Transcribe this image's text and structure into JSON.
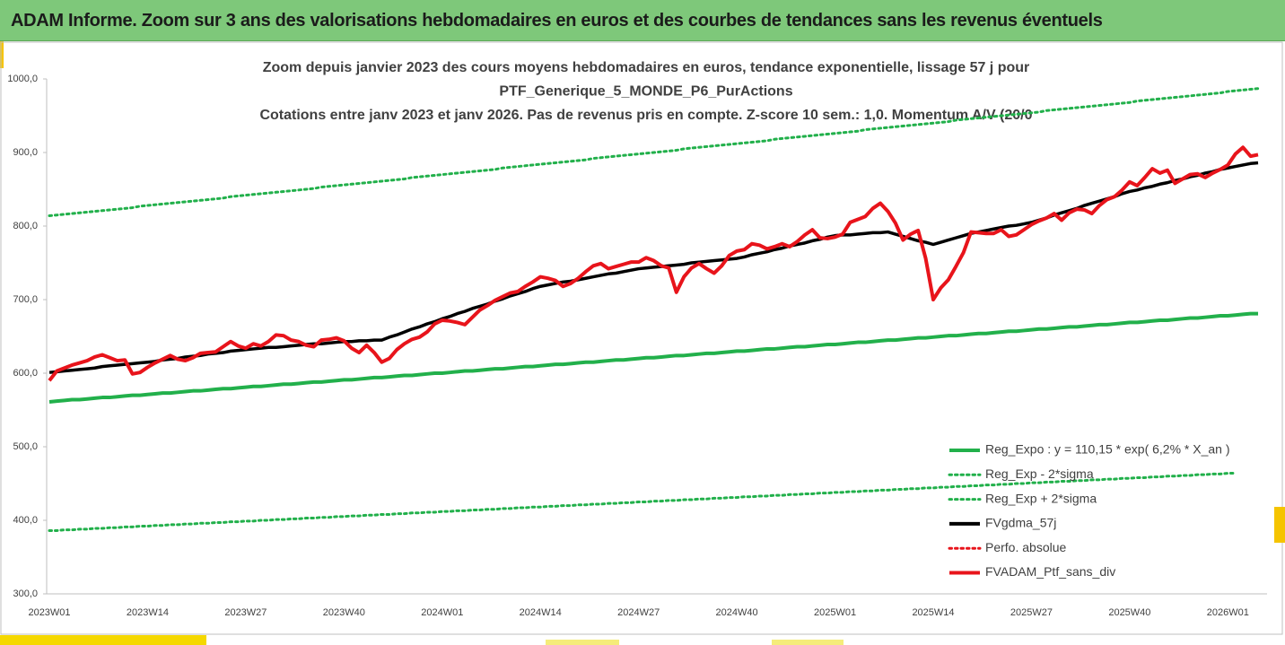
{
  "header": {
    "title": "ADAM Informe. Zoom sur 3 ans des valorisations hebdomadaires en euros et des courbes de tendances sans les revenus éventuels"
  },
  "chart_data": {
    "type": "line",
    "title": [
      "Zoom depuis janvier 2023 des cours moyens hebdomadaires  en euros, tendance exponentielle, lissage 57 j pour",
      "PTF_Generique_5_MONDE_P6_PurActions",
      "Cotations entre janv 2023 et janv 2026. Pas de revenus pris en compte. Z-score 10 sem.: 1,0. Momentum A/V (20/0"
    ],
    "categories": [
      "2023W01",
      null,
      null,
      null,
      null,
      null,
      null,
      null,
      null,
      null,
      null,
      null,
      null,
      "2023W14",
      null,
      null,
      null,
      null,
      null,
      null,
      null,
      null,
      null,
      null,
      null,
      null,
      "2023W27",
      null,
      null,
      null,
      null,
      null,
      null,
      null,
      null,
      null,
      null,
      null,
      null,
      "2023W40",
      null,
      null,
      null,
      null,
      null,
      null,
      null,
      null,
      null,
      null,
      null,
      null,
      "2024W01",
      null,
      null,
      null,
      null,
      null,
      null,
      null,
      null,
      null,
      null,
      null,
      null,
      "2024W14",
      null,
      null,
      null,
      null,
      null,
      null,
      null,
      null,
      null,
      null,
      null,
      null,
      "2024W27",
      null,
      null,
      null,
      null,
      null,
      null,
      null,
      null,
      null,
      null,
      null,
      null,
      "2024W40",
      null,
      null,
      null,
      null,
      null,
      null,
      null,
      null,
      null,
      null,
      null,
      null,
      "2025W01",
      null,
      null,
      null,
      null,
      null,
      null,
      null,
      null,
      null,
      null,
      null,
      null,
      "2025W14",
      null,
      null,
      null,
      null,
      null,
      null,
      null,
      null,
      null,
      null,
      null,
      null,
      "2025W27",
      null,
      null,
      null,
      null,
      null,
      null,
      null,
      null,
      null,
      null,
      null,
      null,
      "2025W40",
      null,
      null,
      null,
      null,
      null,
      null,
      null,
      null,
      null,
      null,
      null,
      null,
      "2026W01",
      null,
      null,
      null,
      null
    ],
    "ylim": [
      300,
      1000
    ],
    "yticks": [
      {
        "value": 300,
        "label": "300,0"
      },
      {
        "value": 400,
        "label": "400,0"
      },
      {
        "value": 500,
        "label": "500,0"
      },
      {
        "value": 600,
        "label": "600,0"
      },
      {
        "value": 700,
        "label": "700,0"
      },
      {
        "value": 800,
        "label": "800,0"
      },
      {
        "value": 900,
        "label": "900,0"
      },
      {
        "value": 1000,
        "label": "1000,0"
      }
    ],
    "grid": false,
    "legend": "lower right",
    "series": [
      {
        "name": "Reg_Expo : y = 110,15 * exp( 6,2% *  X_an )",
        "color": "#22b04b",
        "style": "solid",
        "values": [
          561,
          562,
          563,
          564,
          564,
          565,
          566,
          567,
          567,
          568,
          569,
          570,
          570,
          571,
          572,
          573,
          573,
          574,
          575,
          576,
          576,
          577,
          578,
          579,
          579,
          580,
          581,
          582,
          582,
          583,
          584,
          585,
          585,
          586,
          587,
          588,
          588,
          589,
          590,
          591,
          591,
          592,
          593,
          594,
          594,
          595,
          596,
          597,
          597,
          598,
          599,
          600,
          600,
          601,
          602,
          603,
          603,
          604,
          605,
          606,
          606,
          607,
          608,
          609,
          609,
          610,
          611,
          612,
          612,
          613,
          614,
          615,
          615,
          616,
          617,
          618,
          618,
          619,
          620,
          621,
          621,
          622,
          623,
          624,
          624,
          625,
          626,
          627,
          627,
          628,
          629,
          630,
          630,
          631,
          632,
          633,
          633,
          634,
          635,
          636,
          636,
          637,
          638,
          639,
          639,
          640,
          641,
          642,
          642,
          643,
          644,
          645,
          645,
          646,
          647,
          648,
          648,
          649,
          650,
          651,
          651,
          652,
          653,
          654,
          654,
          655,
          656,
          657,
          657,
          658,
          659,
          660,
          660,
          661,
          662,
          663,
          663,
          664,
          665,
          666,
          666,
          667,
          668,
          669,
          669,
          670,
          671,
          672,
          672,
          673,
          674,
          675,
          675,
          676,
          677,
          678,
          678,
          679,
          680,
          681,
          681
        ]
      },
      {
        "name": "Reg_Exp - 2*sigma",
        "color": "#22b04b",
        "style": "dotted",
        "values": [
          386,
          386,
          387,
          387,
          388,
          388,
          389,
          389,
          390,
          390,
          391,
          391,
          392,
          392,
          393,
          393,
          394,
          394,
          395,
          395,
          396,
          396,
          397,
          397,
          398,
          398,
          399,
          399,
          400,
          400,
          401,
          401,
          402,
          402,
          403,
          403,
          404,
          404,
          405,
          405,
          406,
          406,
          407,
          407,
          408,
          408,
          409,
          409,
          410,
          410,
          411,
          411,
          412,
          412,
          413,
          413,
          414,
          414,
          415,
          415,
          416,
          416,
          417,
          417,
          418,
          418,
          419,
          419,
          420,
          420,
          421,
          421,
          422,
          422,
          423,
          423,
          424,
          424,
          425,
          425,
          426,
          426,
          427,
          427,
          428,
          428,
          429,
          429,
          430,
          430,
          431,
          431,
          432,
          432,
          433,
          433,
          434,
          434,
          435,
          435,
          436,
          436,
          437,
          437,
          438,
          438,
          439,
          439,
          440,
          440,
          441,
          441,
          442,
          442,
          443,
          443,
          444,
          444,
          445,
          445,
          446,
          446,
          447,
          447,
          448,
          448,
          449,
          449,
          450,
          450,
          451,
          451,
          452,
          452,
          453,
          453,
          454,
          454,
          455,
          455,
          456,
          456,
          457,
          457,
          458,
          458,
          459,
          459,
          460,
          460,
          461,
          461,
          462,
          462,
          463,
          463,
          464,
          464,
          null,
          null,
          null
        ]
      },
      {
        "name": "Reg_Exp + 2*sigma",
        "color": "#22b04b",
        "style": "dotted",
        "values": [
          814,
          815,
          816,
          817,
          818,
          819,
          820,
          821,
          822,
          823,
          824,
          825,
          827,
          828,
          829,
          830,
          831,
          832,
          833,
          834,
          835,
          836,
          837,
          838,
          840,
          841,
          842,
          843,
          844,
          845,
          846,
          847,
          848,
          849,
          850,
          851,
          853,
          854,
          855,
          856,
          857,
          858,
          859,
          860,
          861,
          862,
          863,
          864,
          866,
          867,
          868,
          869,
          870,
          871,
          872,
          873,
          874,
          875,
          876,
          877,
          879,
          880,
          881,
          882,
          883,
          884,
          885,
          886,
          887,
          888,
          889,
          890,
          892,
          893,
          894,
          895,
          896,
          897,
          898,
          899,
          900,
          901,
          902,
          903,
          905,
          906,
          907,
          908,
          909,
          910,
          911,
          912,
          913,
          914,
          915,
          916,
          918,
          919,
          920,
          921,
          922,
          923,
          924,
          925,
          926,
          927,
          928,
          929,
          931,
          932,
          933,
          934,
          935,
          936,
          937,
          938,
          939,
          940,
          941,
          942,
          944,
          945,
          946,
          947,
          948,
          949,
          950,
          951,
          952,
          953,
          954,
          955,
          957,
          958,
          959,
          960,
          961,
          962,
          963,
          964,
          965,
          966,
          967,
          968,
          970,
          971,
          972,
          973,
          974,
          975,
          976,
          977,
          978,
          979,
          980,
          981,
          983,
          984,
          985,
          986,
          987
        ]
      },
      {
        "name": "FVgdma_57j",
        "color": "#000000",
        "style": "solid",
        "values": [
          601,
          602,
          603,
          604,
          605,
          606,
          607,
          609,
          610,
          611,
          612,
          613,
          614,
          615,
          616,
          618,
          619,
          620,
          622,
          623,
          624,
          626,
          627,
          628,
          630,
          631,
          632,
          633,
          634,
          635,
          635,
          636,
          637,
          638,
          639,
          640,
          640,
          641,
          642,
          643,
          643,
          644,
          644,
          645,
          645,
          649,
          652,
          656,
          660,
          663,
          667,
          670,
          674,
          677,
          681,
          684,
          688,
          691,
          694,
          698,
          701,
          705,
          708,
          711,
          715,
          718,
          720,
          722,
          724,
          725,
          727,
          729,
          731,
          733,
          735,
          736,
          738,
          740,
          742,
          743,
          744,
          745,
          746,
          747,
          748,
          750,
          751,
          752,
          753,
          754,
          755,
          756,
          758,
          761,
          763,
          765,
          768,
          770,
          773,
          775,
          777,
          780,
          782,
          785,
          787,
          788,
          788,
          789,
          790,
          791,
          791,
          792,
          789,
          786,
          783,
          780,
          778,
          775,
          778,
          781,
          784,
          787,
          790,
          792,
          794,
          796,
          798,
          800,
          801,
          803,
          805,
          808,
          811,
          815,
          818,
          821,
          824,
          828,
          831,
          834,
          837,
          840,
          844,
          847,
          849,
          852,
          854,
          857,
          859,
          862,
          864,
          867,
          869,
          872,
          874,
          877,
          879,
          881,
          883,
          885,
          886
        ]
      },
      {
        "name": "Perfo. absolue",
        "color": "#e8141b",
        "style": "dotted",
        "values": [
          null,
          null,
          null,
          null,
          null,
          null,
          null,
          null,
          null,
          null,
          null,
          null,
          null,
          null,
          null,
          null,
          null,
          null,
          null,
          null,
          null,
          null,
          null,
          null,
          null,
          null,
          null,
          null,
          null,
          null,
          null,
          null,
          null,
          null,
          null,
          null,
          null,
          null,
          null,
          null,
          null,
          null,
          null,
          null,
          null,
          null,
          null,
          null,
          null,
          null,
          null,
          null,
          null,
          null,
          null,
          null,
          null,
          null,
          null,
          null,
          null,
          null,
          null,
          null,
          null,
          null,
          null,
          null,
          null,
          null,
          null,
          null,
          null,
          null,
          null,
          null,
          null,
          null,
          null,
          null,
          null,
          null,
          null,
          null,
          null,
          null,
          null,
          null,
          null,
          null,
          null,
          null,
          null,
          null,
          null,
          null,
          null,
          null,
          null,
          null,
          null,
          null,
          null,
          null,
          null,
          null,
          null,
          null,
          null,
          null,
          null,
          null,
          null,
          null,
          null,
          null,
          null,
          null,
          null,
          null,
          null,
          null,
          null,
          null,
          null,
          null,
          null,
          null,
          null,
          null,
          null,
          null,
          null,
          null,
          null,
          null,
          null,
          null,
          null,
          null,
          null,
          null,
          null,
          null,
          null,
          null,
          null,
          null,
          null,
          null,
          null,
          null,
          null,
          null,
          null,
          null,
          null,
          null,
          null,
          null,
          null
        ]
      },
      {
        "name": "FVADAM_Ptf_sans_div",
        "color": "#e8141b",
        "style": "solid",
        "values": [
          590,
          603,
          607,
          611,
          614,
          617,
          622,
          625,
          621,
          617,
          618,
          599,
          601,
          608,
          614,
          619,
          624,
          619,
          617,
          621,
          627,
          628,
          629,
          636,
          643,
          637,
          634,
          640,
          637,
          643,
          652,
          651,
          645,
          643,
          638,
          636,
          645,
          646,
          648,
          644,
          634,
          628,
          638,
          628,
          615,
          620,
          632,
          640,
          646,
          649,
          656,
          667,
          672,
          671,
          669,
          666,
          676,
          686,
          692,
          699,
          704,
          709,
          711,
          718,
          724,
          731,
          729,
          726,
          718,
          722,
          729,
          738,
          746,
          749,
          742,
          745,
          748,
          751,
          751,
          757,
          753,
          746,
          743,
          710,
          731,
          743,
          749,
          742,
          736,
          746,
          760,
          766,
          768,
          776,
          774,
          769,
          772,
          776,
          772,
          779,
          788,
          795,
          784,
          783,
          785,
          789,
          805,
          809,
          813,
          824,
          831,
          820,
          804,
          781,
          789,
          794,
          756,
          700,
          716,
          727,
          745,
          764,
          792,
          791,
          790,
          790,
          795,
          786,
          788,
          795,
          802,
          807,
          811,
          817,
          808,
          818,
          823,
          822,
          817,
          828,
          836,
          840,
          849,
          860,
          855,
          866,
          878,
          872,
          876,
          858,
          864,
          870,
          871,
          866,
          872,
          877,
          883,
          898,
          907,
          895,
          897
        ]
      }
    ]
  }
}
